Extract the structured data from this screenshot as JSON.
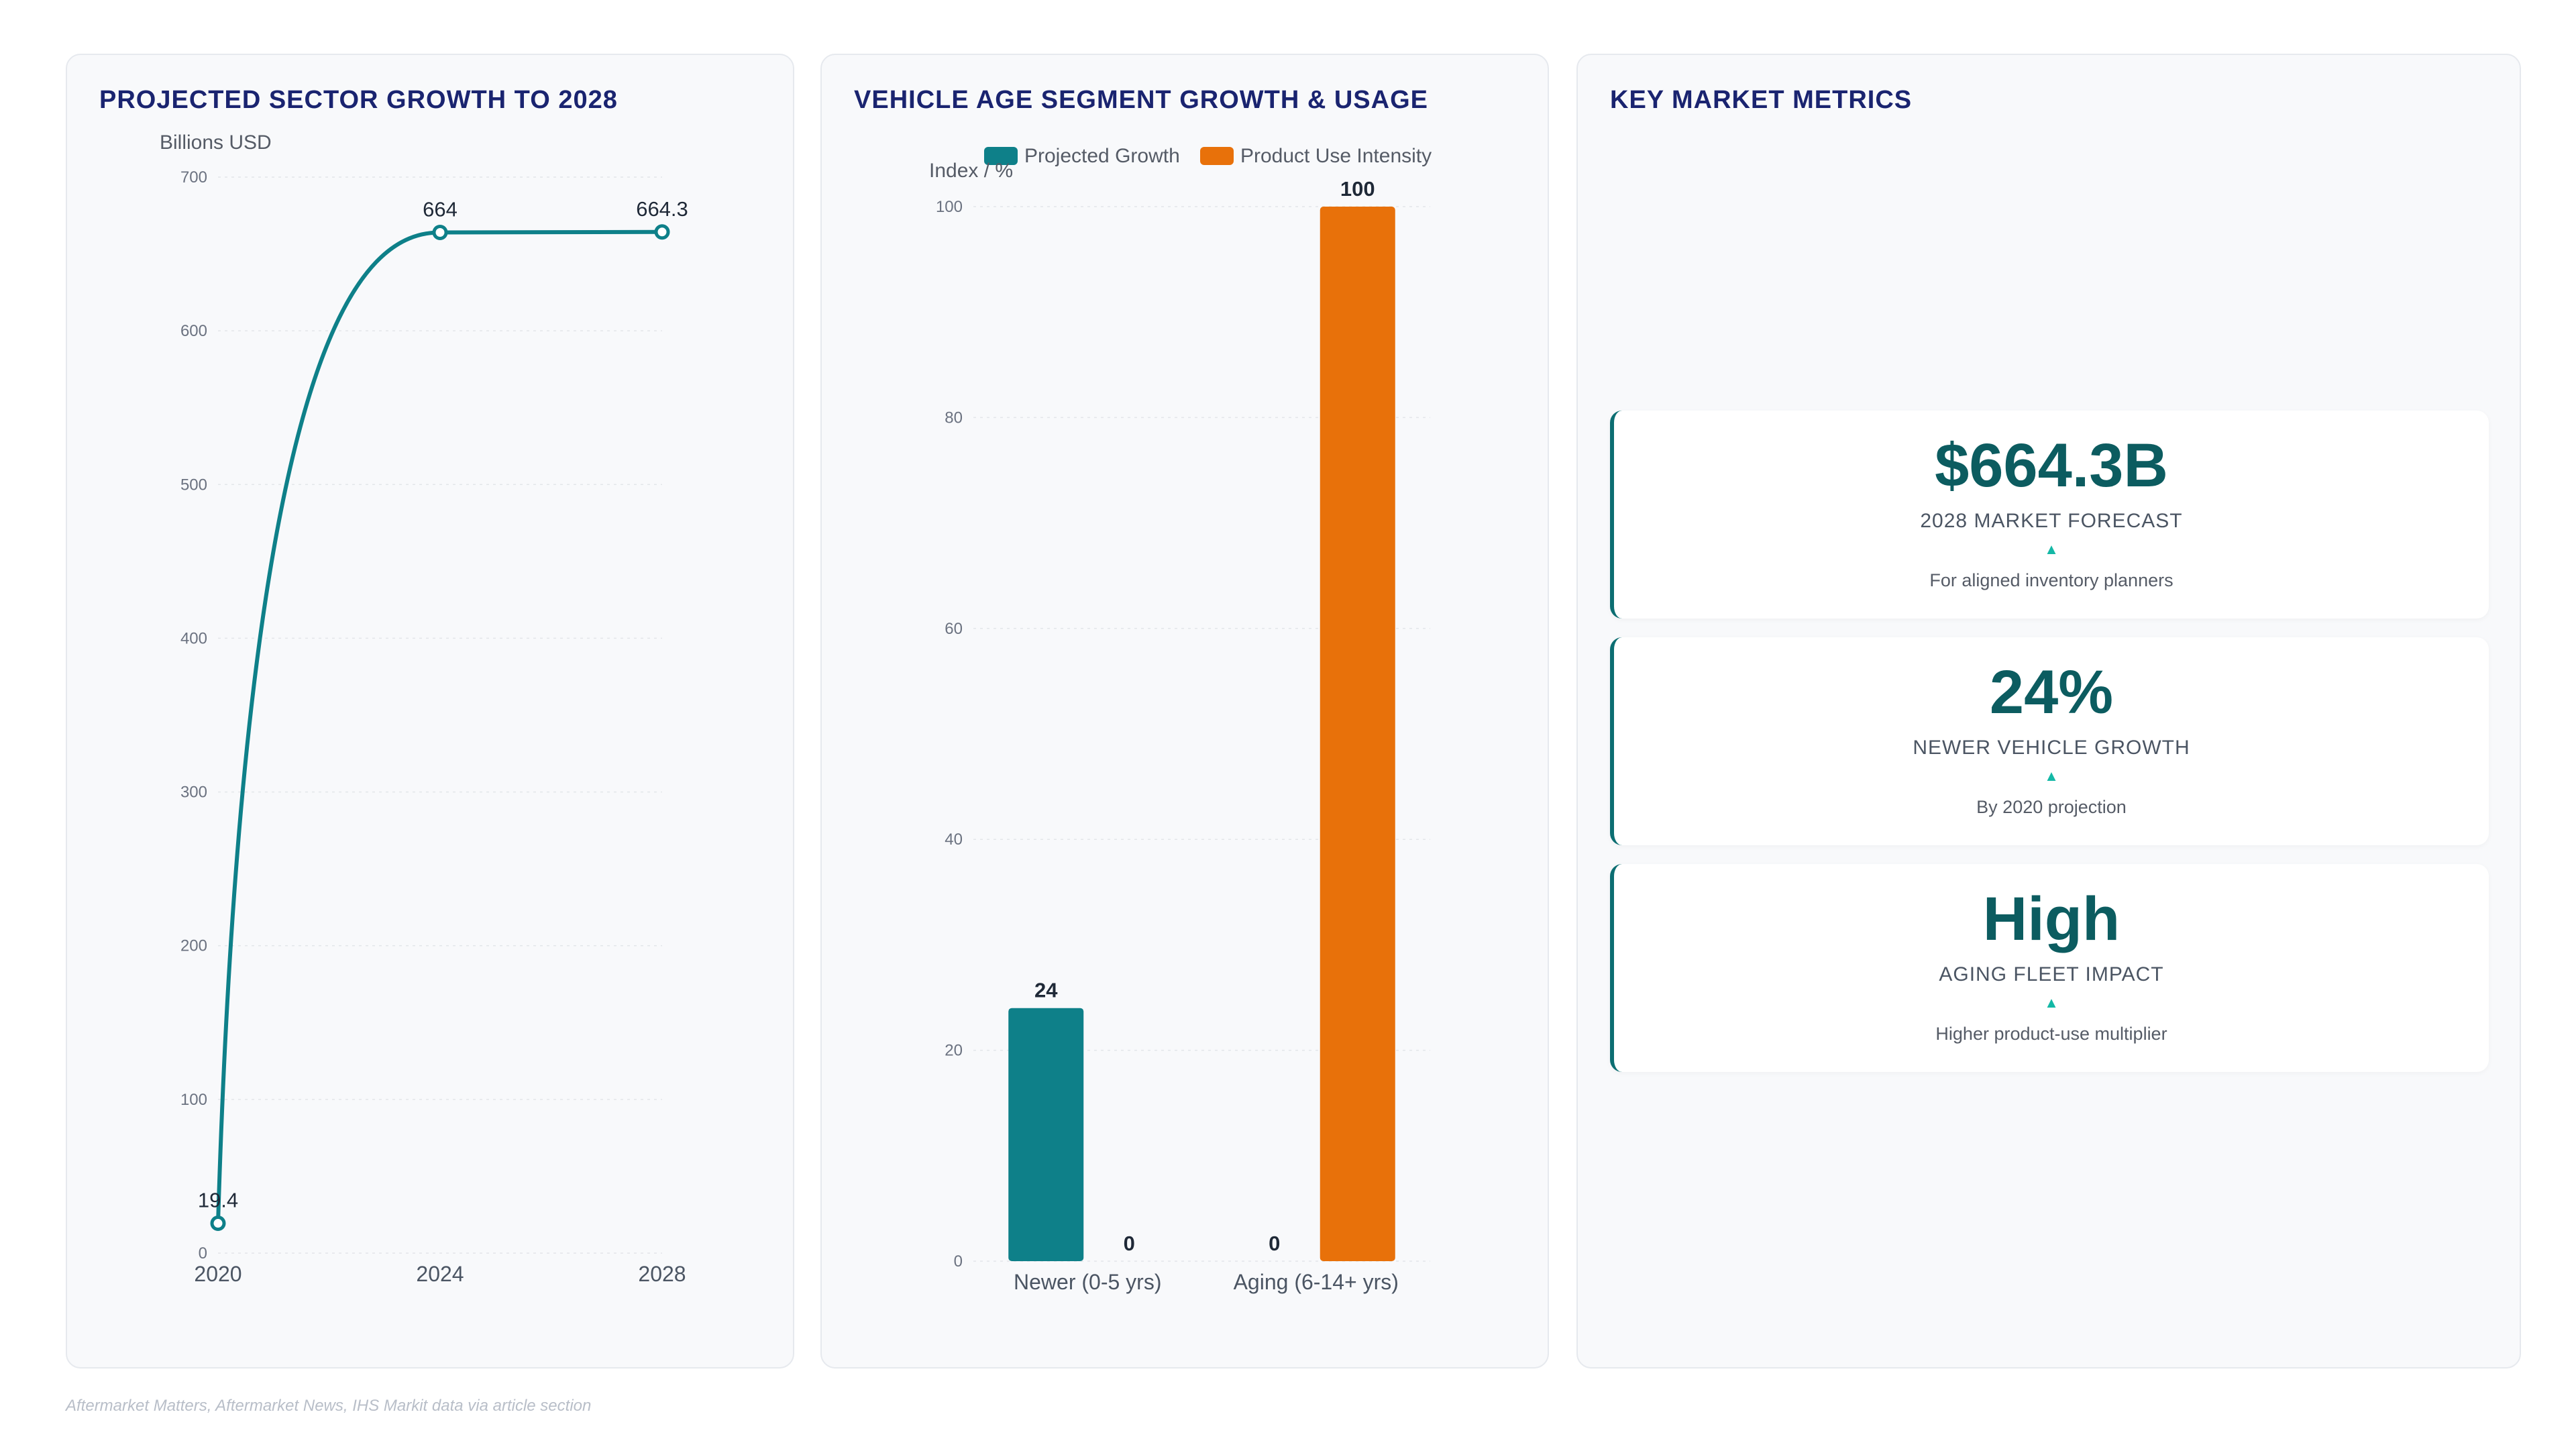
{
  "growth_panel": {
    "title": "PROJECTED SECTOR GROWTH TO 2028"
  },
  "segment_panel": {
    "title": "VEHICLE AGE SEGMENT GROWTH & USAGE"
  },
  "metrics_panel": {
    "title": "KEY MARKET METRICS",
    "cards": [
      {
        "value": "$664.3B",
        "label": "2028 MARKET FORECAST",
        "arrow": "▲",
        "sub": "For aligned inventory planners"
      },
      {
        "value": "24%",
        "label": "NEWER VEHICLE GROWTH",
        "arrow": "▲",
        "sub": "By 2020 projection"
      },
      {
        "value": "High",
        "label": "AGING FLEET IMPACT",
        "arrow": "▲",
        "sub": "Higher product-use multiplier"
      }
    ]
  },
  "source": "Aftermarket Matters, Aftermarket News, IHS Markit data via article section",
  "colors": {
    "teal": "#0e8089",
    "orange": "#e8710a",
    "title": "#1a2470"
  },
  "chart_data": [
    {
      "type": "line",
      "title": "PROJECTED SECTOR GROWTH TO 2028",
      "ylabel": "Billions USD",
      "xlabel": "",
      "x": [
        "2020",
        "2024",
        "2028"
      ],
      "series": [
        {
          "values": [
            19.4,
            664,
            664.3
          ],
          "labels": [
            "19.4",
            "664",
            "664.3"
          ]
        }
      ],
      "ylim": [
        0,
        700
      ],
      "yticks": [
        0,
        100,
        200,
        300,
        400,
        500,
        600,
        700
      ],
      "grid": true,
      "color": "#0e8089"
    },
    {
      "type": "bar",
      "title": "VEHICLE AGE SEGMENT GROWTH & USAGE",
      "ylabel": "Index / %",
      "xlabel": "",
      "categories": [
        "Newer (0-5 yrs)",
        "Aging (6-14+ yrs)"
      ],
      "series": [
        {
          "name": "Projected Growth",
          "values": [
            24,
            0
          ],
          "color": "#0e8089"
        },
        {
          "name": "Product Use Intensity",
          "values": [
            0,
            100
          ],
          "color": "#e8710a"
        }
      ],
      "ylim": [
        0,
        100
      ],
      "yticks": [
        0,
        20,
        40,
        60,
        80,
        100
      ],
      "legend": "top",
      "grid": true
    }
  ]
}
